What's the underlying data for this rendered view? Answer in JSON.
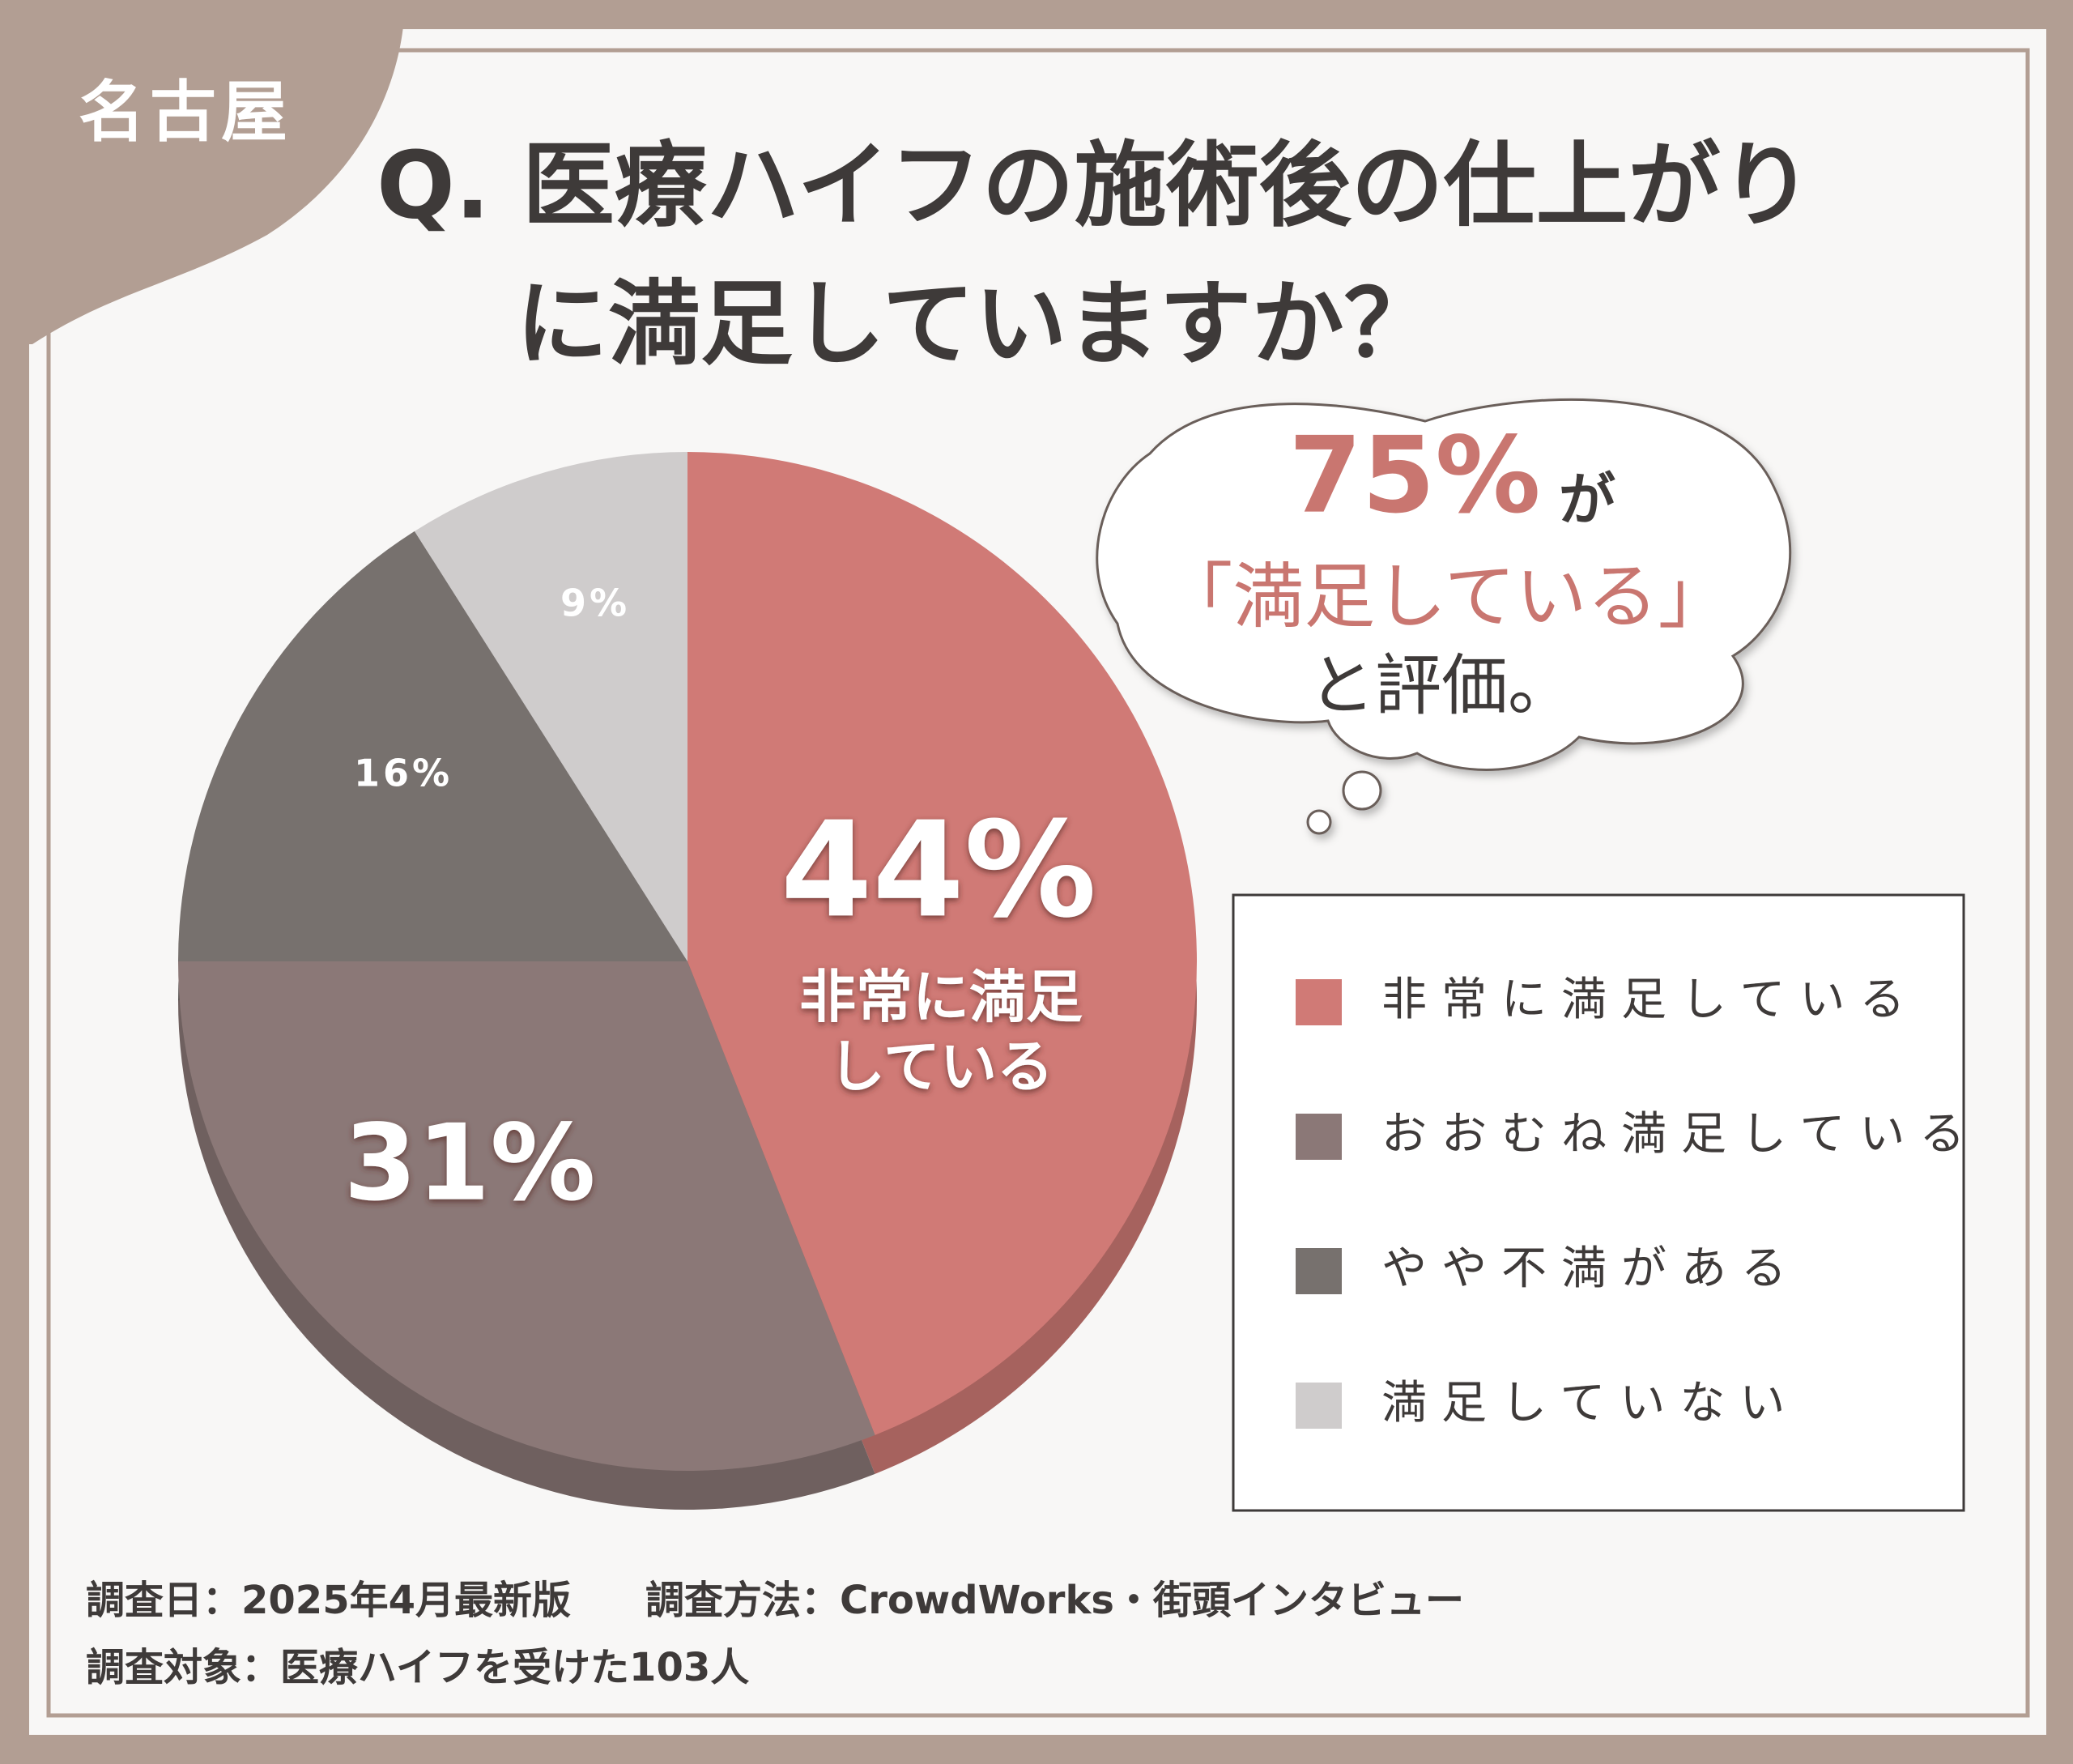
{
  "badge": "名古屋",
  "chart_data": {
    "type": "pie",
    "title": [
      "Q. 医療ハイフの施術後の仕上がり",
      "に満足していますか？"
    ],
    "categories": [
      "非常に満足している",
      "おおむね満足している",
      "やや不満がある",
      "満足していない"
    ],
    "values": [
      44,
      31,
      16,
      9
    ],
    "value_labels": [
      "44%",
      "31%",
      "16%",
      "9%"
    ],
    "colors": [
      "#d07a76",
      "#8b7877",
      "#77716e",
      "#cfcccc"
    ],
    "slice_annotation": [
      "非常に満足",
      "している"
    ],
    "legend": true
  },
  "callout": {
    "highlight": "75%",
    "particle": "が",
    "quote": "「満足している」",
    "closing": "と評価。"
  },
  "footnotes": {
    "date": "調査日：2025年4月最新版",
    "method": "調査方法：CrowdWorks・街頭インタビュー",
    "subject": "調査対象：医療ハイフを受けた103人"
  }
}
